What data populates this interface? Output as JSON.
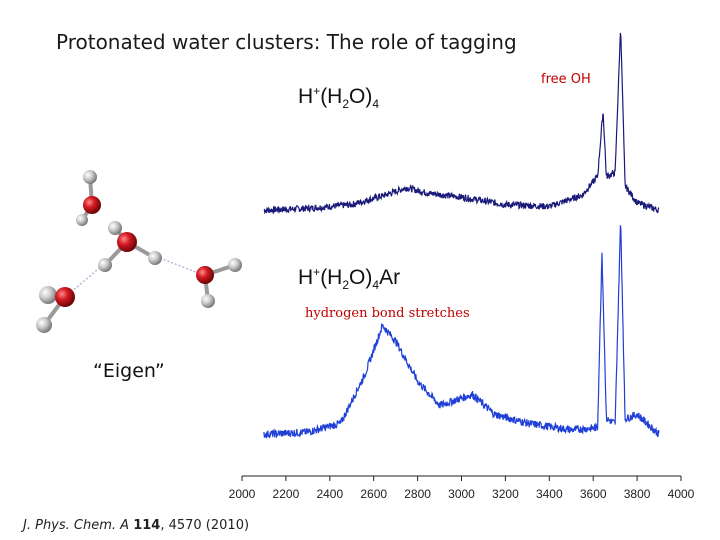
{
  "slide": {
    "title": "Protonated water clusters: The role of tagging",
    "free_oh_label": "free OH",
    "hbond_label": "hydrogen bond stretches",
    "eigen_label": "“Eigen”",
    "formula_top": {
      "h": "H",
      "plus": "+",
      "open": "(H",
      "two": "2",
      "o": "O)",
      "n": "4",
      "tag": ""
    },
    "formula_bottom": {
      "h": "H",
      "plus": "+",
      "open": "(H",
      "two": "2",
      "o": "O)",
      "n": "4",
      "tag": "Ar"
    },
    "citation": {
      "journal": "J. Phys. Chem. A",
      "volume": "114",
      "rest": ", 4570 (2010)"
    }
  },
  "colors": {
    "top_spectrum": "#1a1a7a",
    "bottom_spectrum": "#1f3fd6",
    "label_red": "#c00000",
    "oxygen": "#c4161c",
    "hydrogen": "#b5b5b5"
  },
  "chart_data": {
    "type": "line",
    "xlabel": "",
    "ylabel": "",
    "xlim": [
      2000,
      4000
    ],
    "x_ticks": [
      "2000",
      "2200",
      "2400",
      "2600",
      "2800",
      "3000",
      "3200",
      "3400",
      "3600",
      "3800",
      "4000"
    ],
    "series": [
      {
        "points": [
          [
            2100,
            0.02
          ],
          [
            2300,
            0.03
          ],
          [
            2500,
            0.05
          ],
          [
            2650,
            0.1
          ],
          [
            2750,
            0.14
          ],
          [
            2850,
            0.11
          ],
          [
            3000,
            0.09
          ],
          [
            3200,
            0.05
          ],
          [
            3400,
            0.04
          ],
          [
            3550,
            0.1
          ],
          [
            3620,
            0.2
          ],
          [
            3645,
            0.55
          ],
          [
            3660,
            0.2
          ],
          [
            3700,
            0.22
          ],
          [
            3725,
            1.0
          ],
          [
            3745,
            0.15
          ],
          [
            3800,
            0.06
          ],
          [
            3900,
            0.02
          ]
        ]
      },
      {
        "points": [
          [
            2100,
            0.03
          ],
          [
            2300,
            0.04
          ],
          [
            2450,
            0.08
          ],
          [
            2560,
            0.3
          ],
          [
            2640,
            0.52
          ],
          [
            2700,
            0.45
          ],
          [
            2800,
            0.27
          ],
          [
            2900,
            0.16
          ],
          [
            3050,
            0.21
          ],
          [
            3150,
            0.12
          ],
          [
            3300,
            0.08
          ],
          [
            3500,
            0.05
          ],
          [
            3620,
            0.06
          ],
          [
            3640,
            0.85
          ],
          [
            3660,
            0.1
          ],
          [
            3700,
            0.08
          ],
          [
            3725,
            1.0
          ],
          [
            3745,
            0.1
          ],
          [
            3800,
            0.12
          ],
          [
            3900,
            0.03
          ]
        ]
      }
    ]
  }
}
